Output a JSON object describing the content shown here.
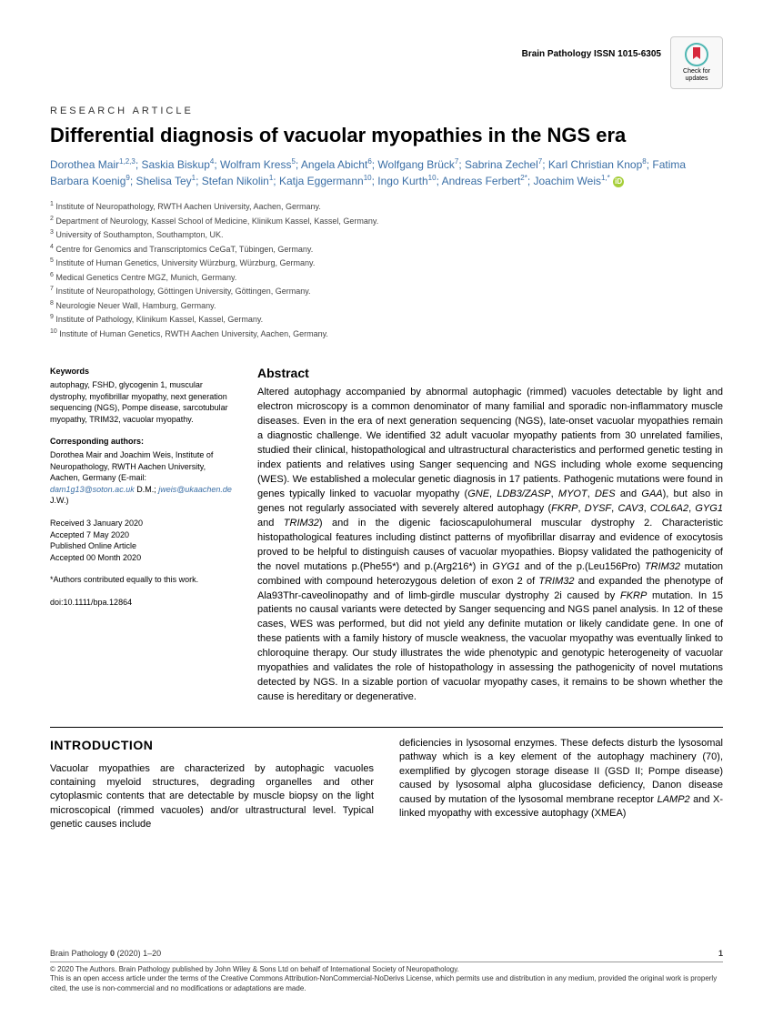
{
  "header": {
    "journal_issn": "Brain Pathology ISSN 1015-6305",
    "check_updates": "Check for updates"
  },
  "article": {
    "type": "RESEARCH ARTICLE",
    "title": "Differential diagnosis of vacuolar myopathies in the NGS era"
  },
  "authors_html": "Dorothea Mair<sup>1,2,3</sup>; Saskia Biskup<sup>4</sup>; Wolfram Kress<sup>5</sup>; Angela Abicht<sup>6</sup>; Wolfgang Brück<sup>7</sup>; Sabrina Zechel<sup>7</sup>; Karl Christian Knop<sup>8</sup>; Fatima Barbara Koenig<sup>9</sup>; Shelisa Tey<sup>1</sup>; Stefan Nikolin<sup>1</sup>; Katja Eggermann<sup>10</sup>; Ingo Kurth<sup>10</sup>; Andreas Ferbert<sup>2*</sup>; Joachim Weis<sup>1,*</sup>",
  "affiliations": [
    "Institute of Neuropathology, RWTH Aachen University, Aachen, Germany.",
    "Department of Neurology, Kassel School of Medicine, Klinikum Kassel, Kassel, Germany.",
    "University of Southampton, Southampton, UK.",
    "Centre for Genomics and Transcriptomics CeGaT, Tübingen, Germany.",
    "Institute of Human Genetics, University Würzburg, Würzburg, Germany.",
    "Medical Genetics Centre MGZ, Munich, Germany.",
    "Institute of Neuropathology, Göttingen University, Göttingen, Germany.",
    "Neurologie Neuer Wall, Hamburg, Germany.",
    "Institute of Pathology, Klinikum Kassel, Kassel, Germany.",
    "Institute of Human Genetics, RWTH Aachen University, Aachen, Germany."
  ],
  "sidebar": {
    "keywords_heading": "Keywords",
    "keywords": "autophagy, FSHD, glycogenin 1, muscular dystrophy, myofibrillar myopathy, next generation sequencing (NGS), Pompe disease, sarcotubular myopathy, TRIM32, vacuolar myopathy.",
    "corresponding_heading": "Corresponding authors:",
    "corresponding_text": "Dorothea Mair and Joachim Weis, Institute of Neuropathology, RWTH Aachen University, Aachen, Germany (E-mail: ",
    "email1": "dam1g13@soton.ac.uk",
    "email_mid": " D.M.; ",
    "email2": "jweis@ukaachen.de",
    "email_end": " J.W.)",
    "received": "Received 3 January 2020",
    "accepted": "Accepted 7 May 2020",
    "published": "Published Online Article",
    "accepted2": "Accepted 00 Month 2020",
    "equal": "*Authors contributed equally to this work.",
    "doi": "doi:10.1111/bpa.12864"
  },
  "abstract": {
    "heading": "Abstract",
    "text": "Altered autophagy accompanied by abnormal autophagic (rimmed) vacuoles detectable by light and electron microscopy is a common denominator of many familial and sporadic non-inflammatory muscle diseases. Even in the era of next generation sequencing (NGS), late-onset vacuolar myopathies remain a diagnostic challenge. We identified 32 adult vacuolar myopathy patients from 30 unrelated families, studied their clinical, histopathological and ultrastructural characteristics and performed genetic testing in index patients and relatives using Sanger sequencing and NGS including whole exome sequencing (WES). We established a molecular genetic diagnosis in 17 patients. Pathogenic mutations were found in genes typically linked to vacuolar myopathy (GNE, LDB3/ZASP, MYOT, DES and GAA), but also in genes not regularly associated with severely altered autophagy (FKRP, DYSF, CAV3, COL6A2, GYG1 and TRIM32) and in the digenic facioscapulohumeral muscular dystrophy 2. Characteristic histopathological features including distinct patterns of myofibrillar disarray and evidence of exocytosis proved to be helpful to distinguish causes of vacuolar myopathies. Biopsy validated the pathogenicity of the novel mutations p.(Phe55*) and p.(Arg216*) in GYG1 and of the p.(Leu156Pro) TRIM32 mutation combined with compound heterozygous deletion of exon 2 of TRIM32 and expanded the phenotype of Ala93Thr-caveolinopathy and of limb-girdle muscular dystrophy 2i caused by FKRP mutation. In 15 patients no causal variants were detected by Sanger sequencing and NGS panel analysis. In 12 of these cases, WES was performed, but did not yield any definite mutation or likely candidate gene. In one of these patients with a family history of muscle weakness, the vacuolar myopathy was eventually linked to chloroquine therapy. Our study illustrates the wide phenotypic and genotypic heterogeneity of vacuolar myopathies and validates the role of histopathology in assessing the pathogenicity of novel mutations detected by NGS. In a sizable portion of vacuolar myopathy cases, it remains to be shown whether the cause is hereditary or degenerative."
  },
  "introduction": {
    "heading": "INTRODUCTION",
    "col1": "Vacuolar myopathies are characterized by autophagic vacuoles containing myeloid structures, degrading organelles and other cytoplasmic contents that are detectable by muscle biopsy on the light microscopical (rimmed vacuoles) and/or ultrastructural level. Typical genetic causes include",
    "col2": "deficiencies in lysosomal enzymes. These defects disturb the lysosomal pathway which is a key element of the autophagy machinery (70), exemplified by glycogen storage disease II (GSD II; Pompe disease) caused by lysosomal alpha glucosidase deficiency, Danon disease caused by mutation of the lysosomal membrane receptor LAMP2 and X-linked myopathy with excessive autophagy (XMEA)"
  },
  "footer": {
    "citation": "Brain Pathology 0 (2020) 1–20",
    "pagenum": "1",
    "copyright": "© 2020 The Authors. Brain Pathology published by John Wiley & Sons Ltd on behalf of International Society of Neuropathology.",
    "license": "This is an open access article under the terms of the Creative Commons Attribution-NonCommercial-NoDerivs License, which permits use and distribution in any medium, provided the original work is properly cited, the use is non-commercial and no modifications or adaptations are made."
  },
  "colors": {
    "author_link": "#3a6ea5",
    "orcid_green": "#a6ce39",
    "crossmark_red": "#d7283c",
    "crossmark_teal": "#4fb7b3"
  }
}
